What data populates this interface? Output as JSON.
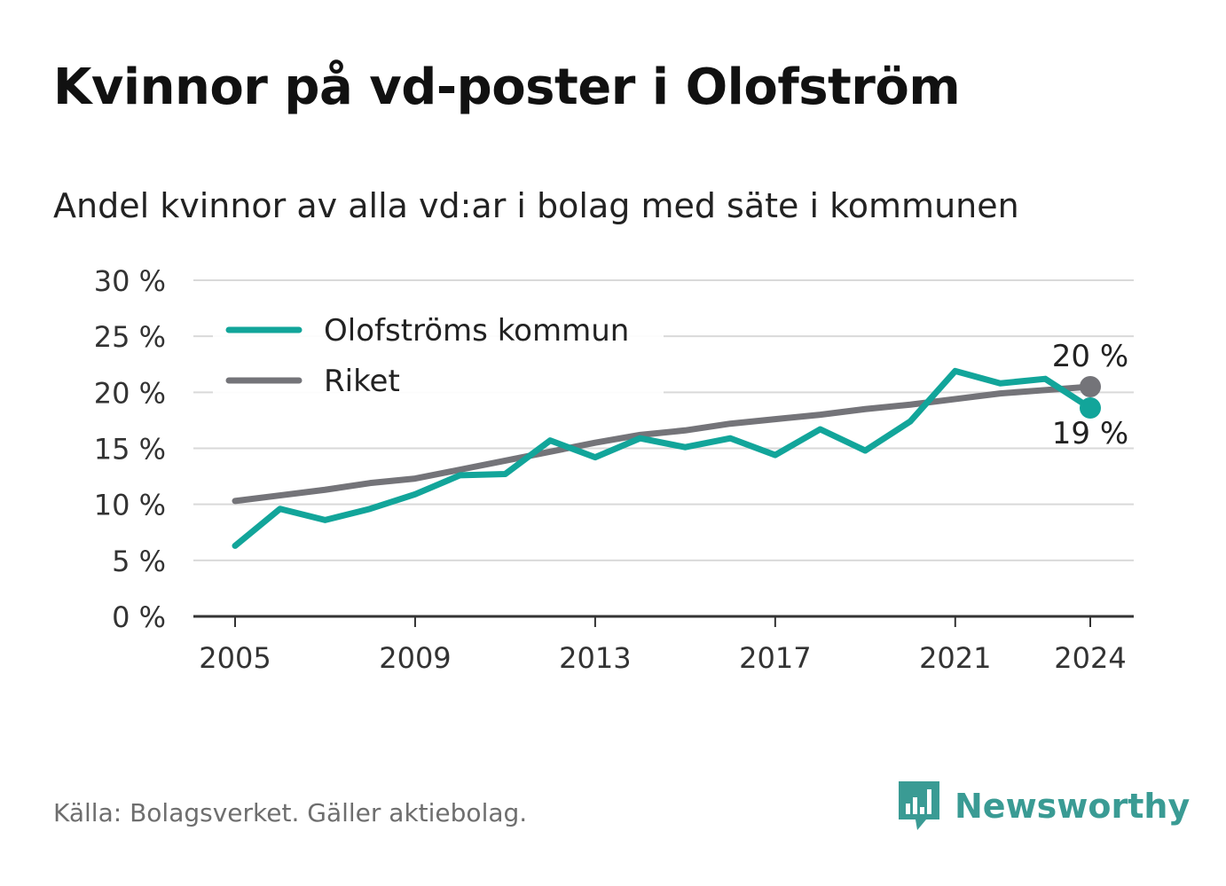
{
  "header": {
    "title": "Kvinnor på vd-poster i Olofström",
    "subtitle": "Andel kvinnor av alla vd:ar i bolag med säte i kommunen"
  },
  "footer": {
    "source": "Källa: Bolagsverket. Gäller aktiebolag.",
    "brand": "Newsworthy"
  },
  "colors": {
    "teal": "#12a59a",
    "gray": "#747479",
    "grid": "#d9d9d9",
    "axis": "#333333",
    "brand": "#3a9b94"
  },
  "chart_data": {
    "type": "line",
    "x": [
      2005,
      2006,
      2007,
      2008,
      2009,
      2010,
      2011,
      2012,
      2013,
      2014,
      2015,
      2016,
      2017,
      2018,
      2019,
      2020,
      2021,
      2022,
      2023,
      2024
    ],
    "series": [
      {
        "name": "Olofströms kommun",
        "color": "#12a59a",
        "values": [
          6.3,
          9.6,
          8.6,
          9.6,
          10.9,
          12.6,
          12.7,
          15.7,
          14.2,
          15.9,
          15.1,
          15.9,
          14.4,
          16.7,
          14.8,
          17.4,
          21.9,
          20.8,
          21.2,
          18.6
        ],
        "end_label": "19 %"
      },
      {
        "name": "Riket",
        "color": "#747479",
        "values": [
          10.3,
          10.8,
          11.3,
          11.9,
          12.3,
          13.1,
          13.9,
          14.7,
          15.5,
          16.2,
          16.6,
          17.2,
          17.6,
          18.0,
          18.5,
          18.9,
          19.4,
          19.9,
          20.2,
          20.5
        ],
        "end_label": "20 %"
      }
    ],
    "xticks": [
      "2005",
      "2009",
      "2013",
      "2017",
      "2021",
      "2024"
    ],
    "yticks": [
      "0 %",
      "5 %",
      "10 %",
      "15 %",
      "20 %",
      "25 %",
      "30 %"
    ],
    "ylim": [
      0,
      30
    ],
    "xlim": [
      2005,
      2024
    ],
    "grid": true,
    "legend_position": "top-left",
    "xlabel": "",
    "ylabel": ""
  }
}
